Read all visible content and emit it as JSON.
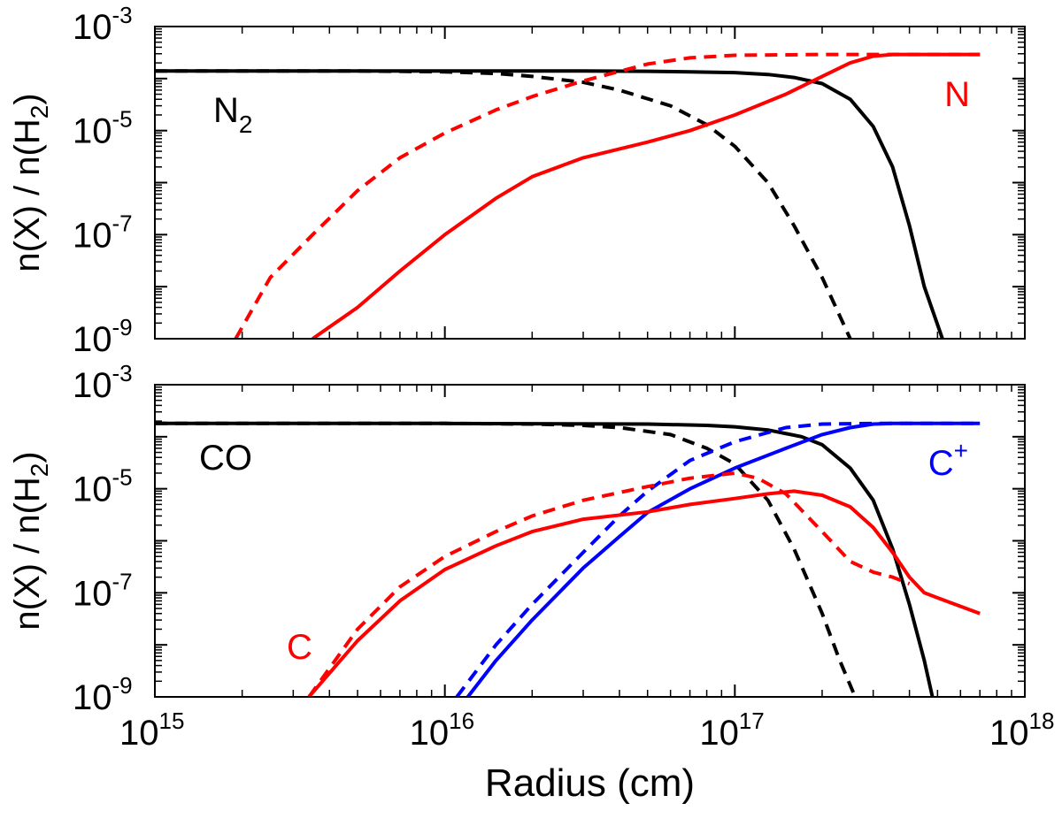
{
  "chart_data": [
    {
      "type": "line",
      "panel": "top",
      "xscale": "log",
      "yscale": "log",
      "xlim": [
        1000000000000000.0,
        1e+18
      ],
      "ylim": [
        1e-09,
        0.001
      ],
      "ylabel": "n(X) / n(H2)",
      "ytick_labels": [
        "10-9",
        "10-7",
        "10-5",
        "10-3"
      ],
      "species_labels": [
        {
          "base": "N",
          "sub": "2",
          "sup": "",
          "color": "#000000"
        },
        {
          "base": "N",
          "sub": "",
          "sup": "",
          "color": "#ff0000"
        }
      ],
      "series": [
        {
          "color": "#000000",
          "style": "solid",
          "x": [
            1000000000000000.0,
            5000000000000000.0,
            1e+16,
            3e+16,
            5e+16,
            7e+16,
            1e+17,
            1.3e+17,
            1.6e+17,
            2e+17,
            2.5e+17,
            3e+17,
            3.5e+17,
            4e+17,
            4.5e+17,
            5.2e+17
          ],
          "y": [
            0.00014,
            0.00014,
            0.00014,
            0.00014,
            0.000138,
            0.000135,
            0.00013,
            0.00012,
            0.000105,
            8e-05,
            4e-05,
            1.2e-05,
            2e-06,
            1.5e-07,
            1e-08,
            1e-09
          ]
        },
        {
          "color": "#000000",
          "style": "dashed",
          "x": [
            1000000000000000.0,
            5000000000000000.0,
            1e+16,
            1.5e+16,
            2e+16,
            3e+16,
            4e+16,
            6e+16,
            8e+16,
            1e+17,
            1.3e+17,
            1.6e+17,
            2e+17,
            2.5e+17
          ],
          "y": [
            0.00014,
            0.00014,
            0.000135,
            0.000125,
            0.00011,
            8.5e-05,
            6e-05,
            3e-05,
            1.3e-05,
            5e-06,
            1e-06,
            1.5e-07,
            1.5e-08,
            1e-09
          ]
        },
        {
          "color": "#ff0000",
          "style": "solid",
          "x": [
            3500000000000000.0,
            5000000000000000.0,
            7000000000000000.0,
            1e+16,
            1.5e+16,
            2e+16,
            3e+16,
            5e+16,
            7e+16,
            1e+17,
            1.5e+17,
            2e+17,
            2.5e+17,
            3e+17,
            3.5e+17,
            5e+17,
            7e+17
          ],
          "y": [
            1e-09,
            4e-09,
            2e-08,
            1e-07,
            5e-07,
            1.3e-06,
            3e-06,
            6e-06,
            1e-05,
            2e-05,
            5e-05,
            0.00011,
            0.0002,
            0.00027,
            0.00029,
            0.00029,
            0.00029
          ]
        },
        {
          "color": "#ff0000",
          "style": "dashed",
          "x": [
            1900000000000000.0,
            2500000000000000.0,
            3500000000000000.0,
            5000000000000000.0,
            7000000000000000.0,
            1e+16,
            1.5e+16,
            2e+16,
            3e+16,
            5e+16,
            7e+16,
            1e+17,
            2e+17,
            3e+17,
            5e+17,
            7e+17
          ],
          "y": [
            1e-09,
            1.5e-08,
            1e-07,
            7e-07,
            3e-06,
            9e-06,
            2.5e-05,
            4.5e-05,
            9e-05,
            0.00019,
            0.00025,
            0.00028,
            0.00029,
            0.00029,
            0.00029,
            0.00029
          ]
        }
      ]
    },
    {
      "type": "line",
      "panel": "bottom",
      "xscale": "log",
      "yscale": "log",
      "xlim": [
        1000000000000000.0,
        1e+18
      ],
      "ylim": [
        1e-09,
        0.001
      ],
      "xlabel": "Radius (cm)",
      "ylabel": "n(X) / n(H2)",
      "xtick_labels": [
        "1015",
        "1016",
        "1017",
        "1018"
      ],
      "ytick_labels": [
        "10-9",
        "10-7",
        "10-5",
        "10-3"
      ],
      "species_labels": [
        {
          "base": "CO",
          "sub": "",
          "sup": "",
          "color": "#000000"
        },
        {
          "base": "C",
          "sub": "",
          "sup": "+",
          "color": "#0000ff"
        },
        {
          "base": "C",
          "sub": "",
          "sup": "",
          "color": "#ff0000"
        }
      ],
      "series": [
        {
          "color": "#000000",
          "style": "solid",
          "x": [
            1000000000000000.0,
            1e+16,
            5e+16,
            8e+16,
            1e+17,
            1.3e+17,
            1.7e+17,
            2e+17,
            2.5e+17,
            3e+17,
            3.5e+17,
            4e+17,
            4.5e+17,
            4.8e+17
          ],
          "y": [
            0.00018,
            0.00018,
            0.000175,
            0.000165,
            0.000155,
            0.000135,
            0.0001,
            7e-05,
            2.5e-05,
            6e-06,
            7e-07,
            6e-08,
            5e-09,
            1e-09
          ]
        },
        {
          "color": "#000000",
          "style": "dashed",
          "x": [
            1000000000000000.0,
            1e+16,
            2e+16,
            3e+16,
            4e+16,
            6e+16,
            8e+16,
            1e+17,
            1.3e+17,
            1.6e+17,
            2e+17,
            2.3e+17,
            2.6e+17
          ],
          "y": [
            0.00018,
            0.00018,
            0.000175,
            0.000165,
            0.00015,
            0.00011,
            6e-05,
            3e-05,
            6e-06,
            7e-07,
            4e-08,
            5e-09,
            1e-09
          ]
        },
        {
          "color": "#0000ff",
          "style": "solid",
          "x": [
            1.2e+16,
            1.5e+16,
            2e+16,
            3e+16,
            4e+16,
            5e+16,
            7e+16,
            1e+17,
            1.5e+17,
            2e+17,
            2.5e+17,
            3e+17,
            3.5e+17,
            5e+17,
            7e+17
          ],
          "y": [
            1e-09,
            5e-09,
            3e-08,
            3e-07,
            1.2e-06,
            3.5e-06,
            1e-05,
            2.5e-05,
            6e-05,
            0.00011,
            0.00015,
            0.000175,
            0.00018,
            0.00018,
            0.00018
          ]
        },
        {
          "color": "#0000ff",
          "style": "dashed",
          "x": [
            1.1e+16,
            1.5e+16,
            2e+16,
            3e+16,
            4e+16,
            5e+16,
            7e+16,
            1e+17,
            1.5e+17,
            2e+17,
            3e+17,
            5e+17,
            7e+17
          ],
          "y": [
            1e-09,
            1e-08,
            6e-08,
            6e-07,
            3e-06,
            9e-06,
            3.5e-05,
            8e-05,
            0.00015,
            0.000175,
            0.00018,
            0.00018,
            0.00018
          ]
        },
        {
          "color": "#ff0000",
          "style": "solid",
          "x": [
            3400000000000000.0,
            5000000000000000.0,
            7000000000000000.0,
            1e+16,
            1.5e+16,
            2e+16,
            3e+16,
            5e+16,
            7e+16,
            1e+17,
            1.3e+17,
            1.6e+17,
            2e+17,
            2.5e+17,
            3e+17,
            3.5e+17,
            4e+17,
            4.5e+17,
            5e+17,
            6e+17,
            7e+17
          ],
          "y": [
            1e-09,
            1.2e-08,
            7e-08,
            2.8e-07,
            8e-07,
            1.5e-06,
            2.6e-06,
            3.6e-06,
            5e-06,
            6.5e-06,
            8e-06,
            9e-06,
            7.5e-06,
            4.5e-06,
            1.8e-06,
            6e-07,
            2e-07,
            1e-07,
            8e-08,
            5.5e-08,
            4e-08
          ]
        },
        {
          "color": "#ff0000",
          "style": "dashed",
          "x": [
            3400000000000000.0,
            5000000000000000.0,
            7000000000000000.0,
            1e+16,
            1.5e+16,
            2e+16,
            3e+16,
            5e+16,
            7e+16,
            1e+17,
            1.2e+17,
            1.5e+17,
            2e+17,
            2.5e+17,
            3e+17,
            3.5e+17,
            4e+17
          ],
          "y": [
            1e-09,
            2e-08,
            1.3e-07,
            5e-07,
            1.5e-06,
            3e-06,
            6e-06,
            1.1e-05,
            1.6e-05,
            2e-05,
            1.6e-05,
            8e-06,
            1.5e-06,
            4e-07,
            2.5e-07,
            2e-07,
            1.5e-07
          ]
        }
      ]
    }
  ]
}
